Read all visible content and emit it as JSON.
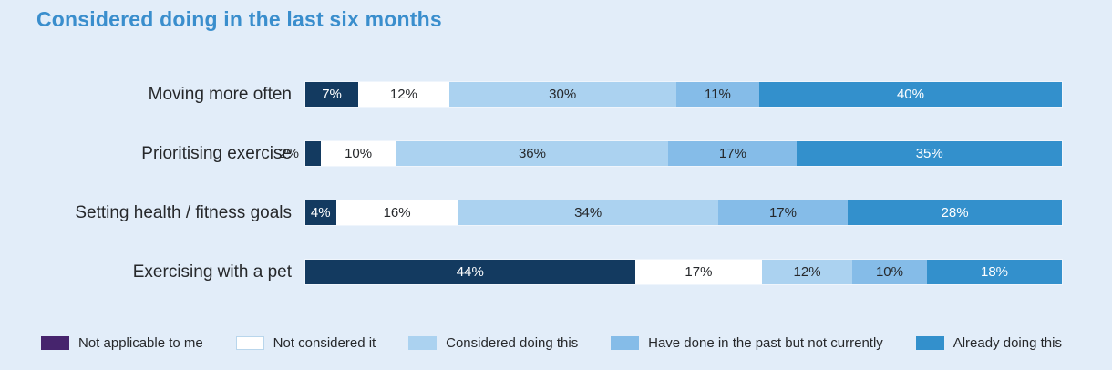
{
  "title": "Considered doing in the last six months",
  "colors": {
    "background": "#e2edf9",
    "title_text": "#3a8ecd",
    "axis_label_text": "#26282b",
    "dark_label_text": "#26282b",
    "light_label_text": "#ffffff"
  },
  "chart_data": {
    "type": "bar",
    "orientation": "horizontal",
    "stacked": true,
    "title": "Considered doing in the last six months",
    "xlabel": "",
    "ylabel": "",
    "xlim": [
      0,
      100
    ],
    "grid": false,
    "legend_position": "bottom",
    "value_suffix": "%",
    "categories": [
      "Moving more often",
      "Prioritising exercise",
      "Setting health / fitness goals",
      "Exercising with a pet"
    ],
    "series": [
      {
        "name": "Not applicable to me",
        "values": [
          7,
          2,
          4,
          44
        ],
        "bar_color": "#133a60",
        "legend_color": "#46246d",
        "legend_border": "",
        "text_color": "#ffffff"
      },
      {
        "name": "Not considered it",
        "values": [
          12,
          10,
          16,
          17
        ],
        "bar_color": "#ffffff",
        "legend_color": "#ffffff",
        "legend_border": "#b9d6ec",
        "text_color": "#26282b"
      },
      {
        "name": "Considered doing this",
        "values": [
          30,
          36,
          34,
          12
        ],
        "bar_color": "#abd2f0",
        "legend_color": "#abd2f0",
        "legend_border": "",
        "text_color": "#26282b"
      },
      {
        "name": "Have done in the past but not currently",
        "values": [
          11,
          17,
          17,
          10
        ],
        "bar_color": "#85bce8",
        "legend_color": "#85bce8",
        "legend_border": "",
        "text_color": "#26282b"
      },
      {
        "name": "Already doing this",
        "values": [
          40,
          35,
          28,
          18
        ],
        "bar_color": "#3390cc",
        "legend_color": "#3390cc",
        "legend_border": "",
        "text_color": "#ffffff"
      }
    ],
    "notes": "Values of 2% or less are labelled outside the bar to the left"
  }
}
